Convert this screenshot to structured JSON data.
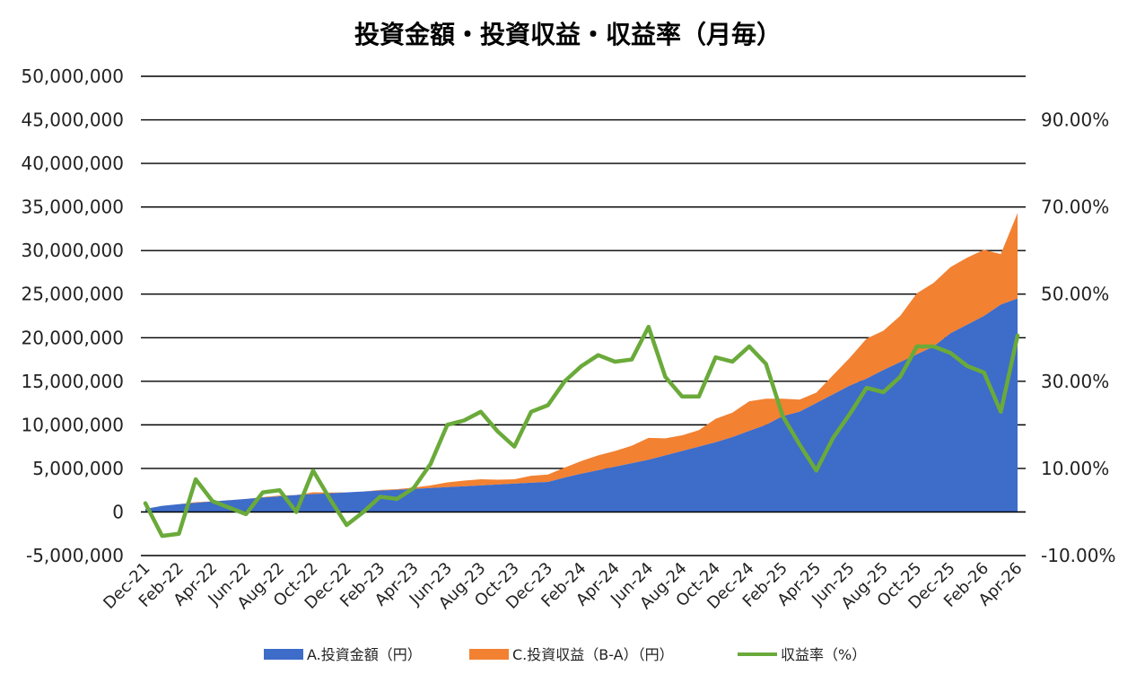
{
  "chart_data": {
    "type": "area",
    "title": "投資金額・投資収益・収益率（月毎）",
    "x": [
      "Dec-21",
      "Jan-22",
      "Feb-22",
      "Mar-22",
      "Apr-22",
      "May-22",
      "Jun-22",
      "Jul-22",
      "Aug-22",
      "Sep-22",
      "Oct-22",
      "Nov-22",
      "Dec-22",
      "Jan-23",
      "Feb-23",
      "Mar-23",
      "Apr-23",
      "May-23",
      "Jun-23",
      "Jul-23",
      "Aug-23",
      "Sep-23",
      "Oct-23",
      "Nov-23",
      "Dec-23",
      "Jan-24",
      "Feb-24",
      "Mar-24",
      "Apr-24",
      "May-24",
      "Jun-24",
      "Jul-24",
      "Aug-24",
      "Sep-24",
      "Oct-24",
      "Nov-24",
      "Dec-24",
      "Jan-25",
      "Feb-25",
      "Mar-25",
      "Apr-25",
      "May-25",
      "Jun-25",
      "Jul-25",
      "Aug-25",
      "Sep-25",
      "Oct-25",
      "Nov-25",
      "Dec-25",
      "Jan-26",
      "Feb-26",
      "Mar-26",
      "Apr-26"
    ],
    "x_tick_labels": [
      "Dec-21",
      "Feb-22",
      "Apr-22",
      "Jun-22",
      "Aug-22",
      "Oct-22",
      "Dec-22",
      "Feb-23",
      "Apr-23",
      "Jun-23",
      "Aug-23",
      "Oct-23",
      "Dec-23",
      "Feb-24",
      "Apr-24",
      "Jun-24",
      "Aug-24",
      "Oct-24",
      "Dec-24",
      "Feb-25",
      "Apr-25",
      "Jun-25",
      "Aug-25",
      "Oct-25",
      "Dec-25",
      "Feb-26",
      "Apr-26"
    ],
    "y_left": {
      "min": -5000000,
      "max": 50000000,
      "step": 5000000,
      "tick_labels": [
        "-5,000,000",
        "0",
        "5,000,000",
        "10,000,000",
        "15,000,000",
        "20,000,000",
        "25,000,000",
        "30,000,000",
        "35,000,000",
        "40,000,000",
        "45,000,000",
        "50,000,000"
      ]
    },
    "y_right": {
      "min": -10,
      "max": 100,
      "tick_values": [
        -10,
        10,
        30,
        50,
        70,
        90
      ],
      "tick_labels": [
        "-10.00%",
        "10.00%",
        "30.00%",
        "50.00%",
        "70.00%",
        "90.00%"
      ]
    },
    "grid": true,
    "legend_position": "bottom",
    "series": [
      {
        "name": "A.投資金額（円）",
        "type": "area",
        "axis": "left",
        "color": "#3d6cc9",
        "values": [
          350000,
          700000,
          900000,
          1050000,
          1200000,
          1350000,
          1500000,
          1650000,
          1800000,
          1950000,
          2050000,
          2150000,
          2250000,
          2350000,
          2450000,
          2550000,
          2650000,
          2750000,
          2850000,
          2950000,
          3050000,
          3150000,
          3250000,
          3350000,
          3450000,
          3950000,
          4400000,
          4800000,
          5200000,
          5600000,
          6000000,
          6500000,
          7000000,
          7500000,
          8000000,
          8600000,
          9300000,
          10000000,
          11000000,
          11500000,
          12500000,
          13500000,
          14500000,
          15300000,
          16300000,
          17200000,
          18100000,
          19000000,
          20500000,
          21500000,
          22500000,
          23800000,
          24500000
        ]
      },
      {
        "name": "C.投資収益（B-A）（円）",
        "type": "area",
        "axis": "left",
        "color": "#f28132",
        "values": [
          10000,
          -40000,
          -50000,
          80000,
          20000,
          10000,
          0,
          60000,
          90000,
          0,
          210000,
          80000,
          -80000,
          -30000,
          80000,
          70000,
          150000,
          300000,
          550000,
          650000,
          700000,
          550000,
          500000,
          800000,
          850000,
          1150000,
          1450000,
          1700000,
          1800000,
          2000000,
          2500000,
          1950000,
          1800000,
          1900000,
          2700000,
          2800000,
          3400000,
          3000000,
          2000000,
          1400000,
          1200000,
          2200000,
          3200000,
          4600000,
          4500000,
          5300000,
          7000000,
          7300000,
          7600000,
          7700000,
          7600000,
          5800000,
          9800000
        ]
      },
      {
        "name": "収益率（%）",
        "type": "line",
        "axis": "right",
        "color": "#6aaa3a",
        "values": [
          2.0,
          -5.5,
          -5.0,
          7.5,
          2.5,
          1.0,
          -0.5,
          4.5,
          5.0,
          0.0,
          9.5,
          3.0,
          -3.0,
          0.0,
          3.5,
          3.0,
          5.5,
          11.0,
          20.0,
          21.0,
          23.0,
          18.5,
          15.0,
          23.0,
          24.5,
          30.0,
          33.5,
          36.0,
          34.5,
          35.0,
          42.5,
          31.0,
          26.5,
          26.5,
          35.5,
          34.5,
          38.0,
          34.0,
          22.0,
          15.5,
          9.5,
          17.0,
          22.5,
          28.5,
          27.5,
          31.0,
          38.0,
          38.0,
          36.5,
          33.5,
          32.0,
          23.0,
          40.5
        ]
      }
    ]
  }
}
